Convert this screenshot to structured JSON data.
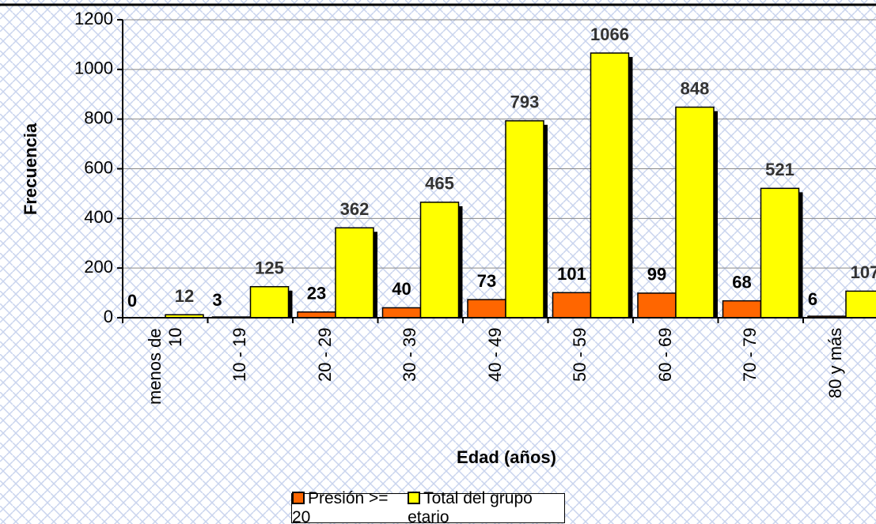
{
  "chart_data": {
    "type": "bar",
    "x_label": "Edad (años)",
    "y_label": "Frecuencia",
    "categories": [
      "menos de 10",
      "10 - 19",
      "20 - 29",
      "30 - 39",
      "40 - 49",
      "50 - 59",
      "60 - 69",
      "70 - 79",
      "80 y más"
    ],
    "series": [
      {
        "name": "Presión >= 20",
        "color": "#ff6600",
        "values": [
          0,
          3,
          23,
          40,
          73,
          101,
          99,
          68,
          6
        ]
      },
      {
        "name": "Total del grupo etario",
        "color": "#ffff00",
        "values": [
          12,
          125,
          362,
          465,
          793,
          1066,
          848,
          521,
          107
        ]
      }
    ],
    "ylim": [
      0,
      1200
    ],
    "yticks": [
      0,
      200,
      400,
      600,
      800,
      1000,
      1200
    ],
    "grid": true
  }
}
